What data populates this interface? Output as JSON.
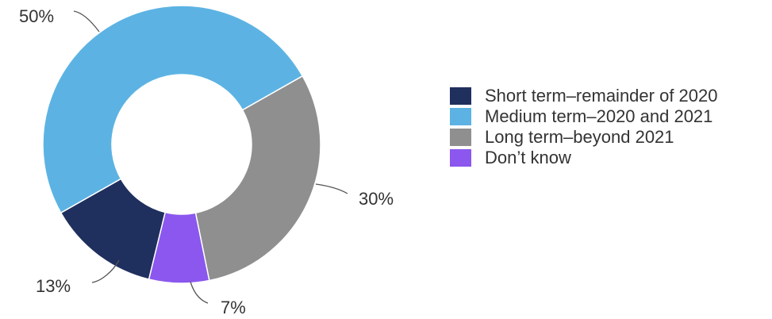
{
  "chart_data": {
    "type": "pie",
    "style": "donut",
    "title": "",
    "legend_position": "right",
    "categories": [
      "Short term–remainder of 2020",
      "Medium term–2020 and 2021",
      "Long term–beyond 2021",
      "Don’t know"
    ],
    "values": [
      13,
      50,
      30,
      7
    ],
    "value_labels": [
      "13%",
      "50%",
      "30%",
      "7%"
    ],
    "colors": [
      "#1f2f5e",
      "#5cb3e3",
      "#8f8f8f",
      "#8b57ee"
    ]
  }
}
